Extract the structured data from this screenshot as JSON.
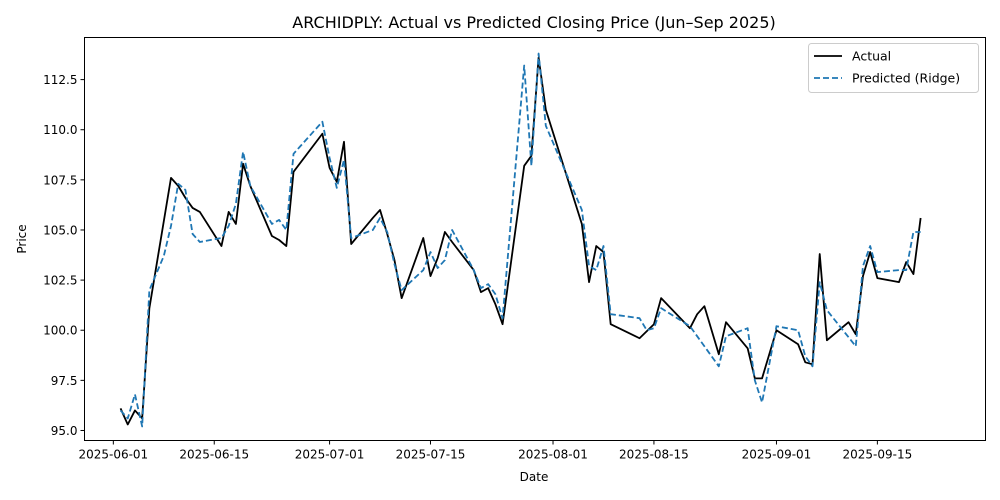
{
  "chart_data": {
    "type": "line",
    "title": "ARCHIDPLY: Actual vs Predicted Closing Price (Jun–Sep 2025)",
    "xlabel": "Date",
    "ylabel": "Price",
    "x_tick_labels": [
      "2025-06-01",
      "2025-06-15",
      "2025-07-01",
      "2025-07-15",
      "2025-08-01",
      "2025-08-15",
      "2025-09-01",
      "2025-09-15"
    ],
    "y_tick_labels": [
      "95.0",
      "97.5",
      "100.0",
      "102.5",
      "105.0",
      "107.5",
      "110.0",
      "112.5"
    ],
    "y_ticks": [
      95.0,
      97.5,
      100.0,
      102.5,
      105.0,
      107.5,
      110.0,
      112.5
    ],
    "xlim": [
      "2025-05-28",
      "2025-09-30"
    ],
    "ylim": [
      94.5,
      114.6
    ],
    "grid": false,
    "legend_position": "top-right",
    "series": [
      {
        "name": "Actual",
        "color": "#000000",
        "style": "solid",
        "points": [
          [
            "2025-06-02",
            96.1
          ],
          [
            "2025-06-03",
            95.3
          ],
          [
            "2025-06-04",
            96.0
          ],
          [
            "2025-06-05",
            95.6
          ],
          [
            "2025-06-06",
            101.1
          ],
          [
            "2025-06-09",
            107.6
          ],
          [
            "2025-06-10",
            107.2
          ],
          [
            "2025-06-11",
            106.6
          ],
          [
            "2025-06-12",
            106.1
          ],
          [
            "2025-06-13",
            105.9
          ],
          [
            "2025-06-16",
            104.2
          ],
          [
            "2025-06-17",
            105.9
          ],
          [
            "2025-06-18",
            105.3
          ],
          [
            "2025-06-19",
            108.3
          ],
          [
            "2025-06-20",
            107.2
          ],
          [
            "2025-06-23",
            104.7
          ],
          [
            "2025-06-24",
            104.5
          ],
          [
            "2025-06-25",
            104.2
          ],
          [
            "2025-06-26",
            107.9
          ],
          [
            "2025-06-30",
            109.8
          ],
          [
            "2025-07-01",
            108.1
          ],
          [
            "2025-07-02",
            107.4
          ],
          [
            "2025-07-03",
            109.4
          ],
          [
            "2025-07-04",
            104.3
          ],
          [
            "2025-07-07",
            105.6
          ],
          [
            "2025-07-08",
            106.0
          ],
          [
            "2025-07-09",
            104.8
          ],
          [
            "2025-07-10",
            103.5
          ],
          [
            "2025-07-11",
            101.6
          ],
          [
            "2025-07-14",
            104.6
          ],
          [
            "2025-07-15",
            102.7
          ],
          [
            "2025-07-16",
            103.6
          ],
          [
            "2025-07-17",
            104.9
          ],
          [
            "2025-07-18",
            104.4
          ],
          [
            "2025-07-21",
            103.0
          ],
          [
            "2025-07-22",
            101.9
          ],
          [
            "2025-07-23",
            102.1
          ],
          [
            "2025-07-24",
            101.3
          ],
          [
            "2025-07-25",
            100.3
          ],
          [
            "2025-07-28",
            108.2
          ],
          [
            "2025-07-29",
            108.7
          ],
          [
            "2025-07-30",
            113.6
          ],
          [
            "2025-07-31",
            111.0
          ],
          [
            "2025-08-05",
            105.3
          ],
          [
            "2025-08-06",
            102.4
          ],
          [
            "2025-08-07",
            104.2
          ],
          [
            "2025-08-08",
            103.9
          ],
          [
            "2025-08-09",
            100.3
          ],
          [
            "2025-08-13",
            99.6
          ],
          [
            "2025-08-15",
            100.3
          ],
          [
            "2025-08-16",
            101.6
          ],
          [
            "2025-08-20",
            100.1
          ],
          [
            "2025-08-21",
            100.8
          ],
          [
            "2025-08-22",
            101.2
          ],
          [
            "2025-08-24",
            98.8
          ],
          [
            "2025-08-25",
            100.4
          ],
          [
            "2025-08-28",
            99.1
          ],
          [
            "2025-08-29",
            97.6
          ],
          [
            "2025-08-30",
            97.6
          ],
          [
            "2025-09-01",
            100.0
          ],
          [
            "2025-09-04",
            99.3
          ],
          [
            "2025-09-05",
            98.4
          ],
          [
            "2025-09-06",
            98.3
          ],
          [
            "2025-09-07",
            103.8
          ],
          [
            "2025-09-08",
            99.5
          ],
          [
            "2025-09-11",
            100.4
          ],
          [
            "2025-09-12",
            99.8
          ],
          [
            "2025-09-13",
            102.7
          ],
          [
            "2025-09-14",
            103.9
          ],
          [
            "2025-09-15",
            102.6
          ],
          [
            "2025-09-18",
            102.4
          ],
          [
            "2025-09-19",
            103.4
          ],
          [
            "2025-09-20",
            102.8
          ],
          [
            "2025-09-21",
            105.6
          ]
        ]
      },
      {
        "name": "Predicted (Ridge)",
        "color": "#1f77b4",
        "style": "dashed",
        "points": [
          [
            "2025-06-02",
            96.0
          ],
          [
            "2025-06-03",
            95.6
          ],
          [
            "2025-06-04",
            96.8
          ],
          [
            "2025-06-05",
            95.2
          ],
          [
            "2025-06-06",
            102.0
          ],
          [
            "2025-06-08",
            103.7
          ],
          [
            "2025-06-09",
            105.2
          ],
          [
            "2025-06-10",
            107.3
          ],
          [
            "2025-06-11",
            107.0
          ],
          [
            "2025-06-12",
            104.8
          ],
          [
            "2025-06-13",
            104.4
          ],
          [
            "2025-06-16",
            104.6
          ],
          [
            "2025-06-17",
            105.2
          ],
          [
            "2025-06-18",
            106.3
          ],
          [
            "2025-06-19",
            108.9
          ],
          [
            "2025-06-20",
            107.2
          ],
          [
            "2025-06-23",
            105.3
          ],
          [
            "2025-06-24",
            105.5
          ],
          [
            "2025-06-25",
            105.0
          ],
          [
            "2025-06-26",
            108.8
          ],
          [
            "2025-06-27",
            109.2
          ],
          [
            "2025-06-30",
            110.4
          ],
          [
            "2025-07-01",
            108.6
          ],
          [
            "2025-07-02",
            107.1
          ],
          [
            "2025-07-03",
            108.5
          ],
          [
            "2025-07-04",
            104.6
          ],
          [
            "2025-07-07",
            105.0
          ],
          [
            "2025-07-08",
            105.6
          ],
          [
            "2025-07-09",
            104.9
          ],
          [
            "2025-07-10",
            103.3
          ],
          [
            "2025-07-11",
            102.0
          ],
          [
            "2025-07-14",
            103.0
          ],
          [
            "2025-07-15",
            103.9
          ],
          [
            "2025-07-16",
            103.1
          ],
          [
            "2025-07-17",
            103.5
          ],
          [
            "2025-07-18",
            105.0
          ],
          [
            "2025-07-21",
            103.0
          ],
          [
            "2025-07-22",
            102.1
          ],
          [
            "2025-07-23",
            102.3
          ],
          [
            "2025-07-24",
            101.8
          ],
          [
            "2025-07-25",
            100.6
          ],
          [
            "2025-07-28",
            113.2
          ],
          [
            "2025-07-29",
            108.2
          ],
          [
            "2025-07-30",
            113.8
          ],
          [
            "2025-07-31",
            110.2
          ],
          [
            "2025-08-05",
            106.0
          ],
          [
            "2025-08-06",
            103.2
          ],
          [
            "2025-08-07",
            103.0
          ],
          [
            "2025-08-08",
            104.2
          ],
          [
            "2025-08-09",
            100.8
          ],
          [
            "2025-08-13",
            100.6
          ],
          [
            "2025-08-14",
            100.0
          ],
          [
            "2025-08-15",
            100.1
          ],
          [
            "2025-08-16",
            101.1
          ],
          [
            "2025-08-20",
            100.2
          ],
          [
            "2025-08-22",
            99.2
          ],
          [
            "2025-08-24",
            98.2
          ],
          [
            "2025-08-25",
            99.7
          ],
          [
            "2025-08-28",
            100.1
          ],
          [
            "2025-08-29",
            97.5
          ],
          [
            "2025-08-30",
            96.4
          ],
          [
            "2025-09-01",
            100.2
          ],
          [
            "2025-09-04",
            100.0
          ],
          [
            "2025-09-05",
            98.7
          ],
          [
            "2025-09-06",
            98.2
          ],
          [
            "2025-09-07",
            102.4
          ],
          [
            "2025-09-08",
            101.0
          ],
          [
            "2025-09-12",
            99.2
          ],
          [
            "2025-09-13",
            103.2
          ],
          [
            "2025-09-14",
            104.2
          ],
          [
            "2025-09-15",
            102.9
          ],
          [
            "2025-09-18",
            103.0
          ],
          [
            "2025-09-19",
            103.0
          ],
          [
            "2025-09-20",
            104.9
          ],
          [
            "2025-09-21",
            104.9
          ]
        ]
      }
    ]
  }
}
